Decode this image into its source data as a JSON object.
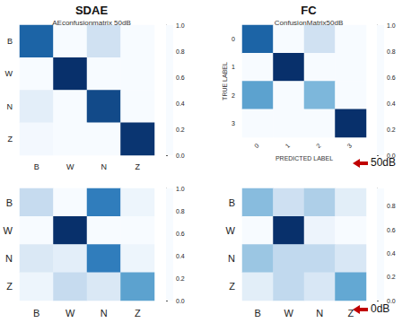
{
  "figure": {
    "column_titles": [
      "SDAE",
      "FC"
    ],
    "row_markers": [
      "50dB",
      "0dB"
    ]
  },
  "chart_data": [
    {
      "type": "heatmap",
      "title": "AEconfusionmatrix 50dB",
      "x_categories": [
        "B",
        "W",
        "N",
        "Z"
      ],
      "y_categories": [
        "B",
        "W",
        "N",
        "Z"
      ],
      "cells": [
        [
          0.8,
          0,
          0.2,
          0
        ],
        [
          0,
          1.0,
          0,
          0
        ],
        [
          0.1,
          0,
          0.9,
          0
        ],
        [
          0.02,
          0,
          0,
          0.98
        ]
      ],
      "colorbar_range": [
        0,
        1.0
      ],
      "colorbar_ticks": [
        {
          "value": 0,
          "label": "0.0"
        },
        {
          "value": 0.2,
          "label": "0.2"
        },
        {
          "value": 0.4,
          "label": "0.4"
        },
        {
          "value": 0.6,
          "label": "0.6"
        },
        {
          "value": 0.8,
          "label": "0.8"
        },
        {
          "value": 1.0,
          "label": "1.0"
        }
      ]
    },
    {
      "type": "heatmap",
      "title": "ConfusionMatrix50dB",
      "xlabel": "PREDICTED LABEL",
      "ylabel": "TRUE LABEL",
      "x_categories": [
        "0",
        "1",
        "2",
        "3"
      ],
      "y_categories": [
        "0",
        "1",
        "2",
        "3"
      ],
      "cells": [
        [
          0.8,
          0,
          0.2,
          0
        ],
        [
          0,
          1.0,
          0,
          0
        ],
        [
          0.55,
          0,
          0.45,
          0
        ],
        [
          0,
          0,
          0,
          1.0
        ]
      ],
      "colorbar_range": [
        0,
        1.0
      ],
      "colorbar_ticks": [
        {
          "value": 0,
          "label": "0.0"
        },
        {
          "value": 0.2,
          "label": "0.2"
        },
        {
          "value": 0.4,
          "label": "0.4"
        },
        {
          "value": 0.6,
          "label": "0.6"
        },
        {
          "value": 0.8,
          "label": "0.8"
        },
        {
          "value": 1.0,
          "label": "1.0"
        }
      ]
    },
    {
      "type": "heatmap",
      "x_categories": [
        "B",
        "W",
        "N",
        "Z"
      ],
      "y_categories": [
        "B",
        "W",
        "N",
        "Z"
      ],
      "cells": [
        [
          0.25,
          0,
          0.7,
          0.05
        ],
        [
          0,
          1.0,
          0,
          0
        ],
        [
          0.15,
          0.1,
          0.7,
          0.05
        ],
        [
          0.05,
          0.25,
          0.15,
          0.55
        ]
      ],
      "colorbar_range": [
        0,
        1.0
      ],
      "colorbar_ticks": [
        {
          "value": 0,
          "label": "0.0"
        },
        {
          "value": 0.2,
          "label": "0.2"
        },
        {
          "value": 0.4,
          "label": "0.4"
        },
        {
          "value": 0.6,
          "label": "0.6"
        },
        {
          "value": 0.8,
          "label": "0.8"
        },
        {
          "value": 1.0,
          "label": "1.0"
        }
      ]
    },
    {
      "type": "heatmap",
      "x_categories": [
        "B",
        "W",
        "N",
        "Z"
      ],
      "y_categories": [
        "B",
        "W",
        "N",
        "Z"
      ],
      "cells": [
        [
          0.4,
          0.2,
          0.3,
          0.1
        ],
        [
          0,
          0.95,
          0.05,
          0
        ],
        [
          0.35,
          0.25,
          0.25,
          0.15
        ],
        [
          0.1,
          0.25,
          0.15,
          0.5
        ]
      ],
      "colorbar_range": [
        0,
        0.95
      ],
      "colorbar_ticks": [
        {
          "value": 0,
          "label": "0.0"
        },
        {
          "value": 0.2,
          "label": "0.2"
        },
        {
          "value": 0.4,
          "label": "0.4"
        },
        {
          "value": 0.6,
          "label": "0.6"
        },
        {
          "value": 0.8,
          "label": "0.8"
        }
      ]
    }
  ]
}
